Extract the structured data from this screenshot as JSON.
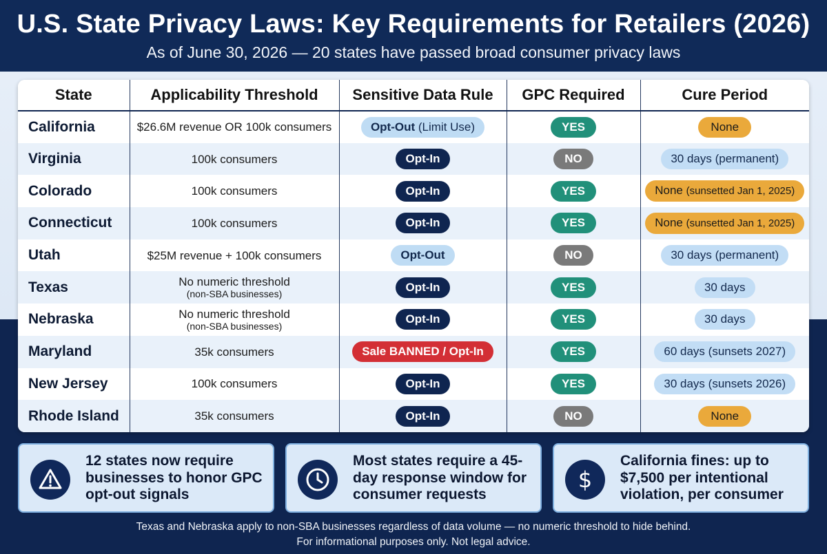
{
  "header": {
    "title": "U.S. State Privacy Laws: Key Requirements for Retailers (2026)",
    "subtitle": "As of June 30, 2026 — 20 states have passed broad consumer privacy laws"
  },
  "table": {
    "columns": [
      "State",
      "Applicability Threshold",
      "Sensitive Data Rule",
      "GPC Required",
      "Cure Period"
    ],
    "rows": [
      {
        "state": "California",
        "threshold": "$26.6M revenue OR 100k consumers",
        "threshold_sub": "",
        "sensitive": "Opt-Out",
        "sensitive_note": "(Limit Use)",
        "sensitive_style": "light",
        "gpc": "YES",
        "cure": "None",
        "cure_note": "",
        "cure_style": "none"
      },
      {
        "state": "Virginia",
        "threshold": "100k consumers",
        "threshold_sub": "",
        "sensitive": "Opt-In",
        "sensitive_note": "",
        "sensitive_style": "dark",
        "gpc": "NO",
        "cure": "30 days (permanent)",
        "cure_note": "",
        "cure_style": "blue"
      },
      {
        "state": "Colorado",
        "threshold": "100k consumers",
        "threshold_sub": "",
        "sensitive": "Opt-In",
        "sensitive_note": "",
        "sensitive_style": "dark",
        "gpc": "YES",
        "cure": "None",
        "cure_note": "(sunsetted Jan 1, 2025)",
        "cure_style": "amber"
      },
      {
        "state": "Connecticut",
        "threshold": "100k consumers",
        "threshold_sub": "",
        "sensitive": "Opt-In",
        "sensitive_note": "",
        "sensitive_style": "dark",
        "gpc": "YES",
        "cure": "None",
        "cure_note": "(sunsetted Jan 1, 2025)",
        "cure_style": "amber"
      },
      {
        "state": "Utah",
        "threshold": "$25M revenue + 100k consumers",
        "threshold_sub": "",
        "sensitive": "Opt-Out",
        "sensitive_note": "",
        "sensitive_style": "light",
        "gpc": "NO",
        "cure": "30 days (permanent)",
        "cure_note": "",
        "cure_style": "blue"
      },
      {
        "state": "Texas",
        "threshold": "No numeric threshold",
        "threshold_sub": "(non-SBA businesses)",
        "sensitive": "Opt-In",
        "sensitive_note": "",
        "sensitive_style": "dark",
        "gpc": "YES",
        "cure": "30 days",
        "cure_note": "",
        "cure_style": "blue"
      },
      {
        "state": "Nebraska",
        "threshold": "No numeric threshold",
        "threshold_sub": "(non-SBA businesses)",
        "sensitive": "Opt-In",
        "sensitive_note": "",
        "sensitive_style": "dark",
        "gpc": "YES",
        "cure": "30 days",
        "cure_note": "",
        "cure_style": "blue"
      },
      {
        "state": "Maryland",
        "threshold": "35k consumers",
        "threshold_sub": "",
        "sensitive": "Sale BANNED / Opt-In",
        "sensitive_note": "",
        "sensitive_style": "red",
        "gpc": "YES",
        "cure": "60 days (sunsets 2027)",
        "cure_note": "",
        "cure_style": "blue"
      },
      {
        "state": "New Jersey",
        "threshold": "100k consumers",
        "threshold_sub": "",
        "sensitive": "Opt-In",
        "sensitive_note": "",
        "sensitive_style": "dark",
        "gpc": "YES",
        "cure": "30 days (sunsets 2026)",
        "cure_note": "",
        "cure_style": "blue"
      },
      {
        "state": "Rhode Island",
        "threshold": "35k consumers",
        "threshold_sub": "",
        "sensitive": "Opt-In",
        "sensitive_note": "",
        "sensitive_style": "dark",
        "gpc": "NO",
        "cure": "None",
        "cure_note": "",
        "cure_style": "none"
      }
    ]
  },
  "callouts": [
    {
      "icon": "warning-icon",
      "text": "12 states now require businesses to honor GPC opt-out signals"
    },
    {
      "icon": "clock-icon",
      "text": "Most states require a 45-day response window for consumer requests"
    },
    {
      "icon": "dollar-icon",
      "text": "California fines: up to $7,500 per intentional violation, per consumer"
    }
  ],
  "footer": {
    "line1": "Texas and Nebraska apply to non-SBA businesses regardless of data volume — no numeric threshold to hide behind.",
    "line2": "For informational purposes only. Not legal advice."
  },
  "colors": {
    "navy": "#0f2550",
    "yes_green": "#21907a",
    "no_gray": "#7a7a7a",
    "red": "#d32f35",
    "amber": "#eaa93b",
    "light_blue": "#c2ddf5"
  }
}
